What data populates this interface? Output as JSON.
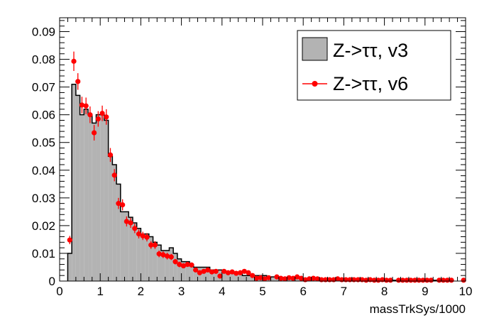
{
  "chart_data": {
    "type": "bar",
    "xlabel": "massTrkSys/1000",
    "xlim": [
      0,
      10
    ],
    "ylim": [
      0,
      0.095
    ],
    "x_ticks": [
      0,
      1,
      2,
      3,
      4,
      5,
      6,
      7,
      8,
      9,
      10
    ],
    "x_tick_labels": [
      "0",
      "1",
      "2",
      "3",
      "4",
      "5",
      "6",
      "7",
      "8",
      "9",
      "10"
    ],
    "y_ticks": [
      0,
      0.01,
      0.02,
      0.03,
      0.04,
      0.05,
      0.06,
      0.07,
      0.08,
      0.09
    ],
    "y_tick_labels": [
      "0",
      "0.01",
      "0.02",
      "0.03",
      "0.04",
      "0.05",
      "0.06",
      "0.07",
      "0.08",
      "0.09"
    ],
    "bin_width": 0.1,
    "colors": {
      "hist_fill": "#b3b3b3",
      "hist_line": "#000000",
      "points": "#ff0000"
    },
    "legend": {
      "position": "top-right",
      "entries": [
        {
          "label": "Z->ττ, v3",
          "style": "filled-box"
        },
        {
          "label": "Z->ττ, v6",
          "style": "marker-line"
        }
      ]
    },
    "series": [
      {
        "name": "Z->ττ, v3",
        "kind": "histogram",
        "x_edges_start": 0.2,
        "values": [
          0.01,
          0.071,
          0.067,
          0.06,
          0.062,
          0.06,
          0.057,
          0.06,
          0.06,
          0.058,
          0.045,
          0.042,
          0.035,
          0.025,
          0.025,
          0.023,
          0.021,
          0.019,
          0.017,
          0.017,
          0.016,
          0.014,
          0.013,
          0.011,
          0.011,
          0.012,
          0.01,
          0.008,
          0.007,
          0.007,
          0.006,
          0.005,
          0.005,
          0.005,
          0.005,
          0.004,
          0.004,
          0.004,
          0.003,
          0.003,
          0.003,
          0.003,
          0.003,
          0.002,
          0.002,
          0.002,
          0.002,
          0.002,
          0.002,
          0.0015,
          0.0015,
          0.0015,
          0.0013,
          0.0012,
          0.0011,
          0.001,
          0.001,
          0.001,
          0.001,
          0.001,
          0.0009,
          0.0009,
          0.0008,
          0.0008,
          0.0008,
          0.0007,
          0.0007,
          0.0007,
          0.0006,
          0.0006,
          0.0006,
          0.0005,
          0.0005,
          0.0005,
          0.0005,
          0.0004,
          0.0004,
          0.0004,
          0.0004,
          0.0004,
          0.0003,
          0.0003,
          0.0003,
          0.0003,
          0.0003,
          0.0003,
          0.0003,
          0.0003,
          0.0003,
          0.0003,
          0.0003,
          0.0003,
          0.0003,
          0.0003,
          0.0003
        ]
      },
      {
        "name": "Z->ττ, v6",
        "kind": "points-with-errors",
        "points": [
          [
            0.25,
            0.0148,
            0.0015
          ],
          [
            0.35,
            0.0793,
            0.0035
          ],
          [
            0.45,
            0.072,
            0.003
          ],
          [
            0.55,
            0.0635,
            0.003
          ],
          [
            0.65,
            0.0632,
            0.003
          ],
          [
            0.75,
            0.06,
            0.003
          ],
          [
            0.85,
            0.0535,
            0.0028
          ],
          [
            0.95,
            0.0585,
            0.0028
          ],
          [
            1.05,
            0.0605,
            0.0028
          ],
          [
            1.15,
            0.0592,
            0.0028
          ],
          [
            1.25,
            0.0455,
            0.0025
          ],
          [
            1.35,
            0.0382,
            0.0022
          ],
          [
            1.45,
            0.028,
            0.002
          ],
          [
            1.55,
            0.0275,
            0.002
          ],
          [
            1.65,
            0.0215,
            0.0018
          ],
          [
            1.75,
            0.021,
            0.0018
          ],
          [
            1.85,
            0.019,
            0.0017
          ],
          [
            1.95,
            0.017,
            0.0016
          ],
          [
            2.05,
            0.0163,
            0.0015
          ],
          [
            2.15,
            0.0158,
            0.0015
          ],
          [
            2.25,
            0.013,
            0.0014
          ],
          [
            2.35,
            0.013,
            0.0014
          ],
          [
            2.45,
            0.0098,
            0.0012
          ],
          [
            2.55,
            0.0095,
            0.0012
          ],
          [
            2.65,
            0.009,
            0.0012
          ],
          [
            2.75,
            0.0087,
            0.0011
          ],
          [
            2.85,
            0.007,
            0.001
          ],
          [
            2.95,
            0.006,
            0.001
          ],
          [
            3.05,
            0.0055,
            0.0009
          ],
          [
            3.15,
            0.006,
            0.0009
          ],
          [
            3.25,
            0.0058,
            0.0009
          ],
          [
            3.35,
            0.004,
            0.0008
          ],
          [
            3.45,
            0.003,
            0.0007
          ],
          [
            3.55,
            0.0035,
            0.0007
          ],
          [
            3.65,
            0.004,
            0.0007
          ],
          [
            3.75,
            0.0033,
            0.0007
          ],
          [
            3.85,
            0.0035,
            0.0007
          ],
          [
            3.95,
            0.0018,
            0.0006
          ],
          [
            4.05,
            0.0035,
            0.0007
          ],
          [
            4.15,
            0.003,
            0.0006
          ],
          [
            4.25,
            0.0033,
            0.0006
          ],
          [
            4.35,
            0.0028,
            0.0006
          ],
          [
            4.45,
            0.003,
            0.0006
          ],
          [
            4.55,
            0.0035,
            0.0006
          ],
          [
            4.65,
            0.003,
            0.0006
          ],
          [
            4.75,
            0.002,
            0.0005
          ],
          [
            4.85,
            0.001,
            0.0004
          ],
          [
            4.95,
            0.0012,
            0.0004
          ],
          [
            5.05,
            0.0008,
            0.0004
          ],
          [
            5.15,
            0.0012,
            0.0004
          ],
          [
            5.35,
            0.0015,
            0.0004
          ],
          [
            5.45,
            0.001,
            0.0004
          ],
          [
            5.55,
            0.0008,
            0.0003
          ],
          [
            5.65,
            0.0012,
            0.0004
          ],
          [
            5.75,
            0.001,
            0.0003
          ],
          [
            5.85,
            0.0015,
            0.0004
          ],
          [
            5.95,
            0.001,
            0.0003
          ],
          [
            6.05,
            0.0005,
            0.0003
          ],
          [
            6.15,
            0.0008,
            0.0003
          ],
          [
            6.25,
            0.001,
            0.0003
          ],
          [
            6.35,
            0.0008,
            0.0003
          ],
          [
            6.45,
            0.0005,
            0.0003
          ],
          [
            6.55,
            0.0005,
            0.0003
          ],
          [
            6.65,
            0.0005,
            0.0003
          ],
          [
            6.75,
            0.0005,
            0.0003
          ],
          [
            6.85,
            0.0008,
            0.0003
          ],
          [
            6.95,
            0.0005,
            0.0003
          ],
          [
            7.05,
            0.0005,
            0.0003
          ],
          [
            7.15,
            0.0005,
            0.0003
          ],
          [
            7.25,
            0.0005,
            0.0003
          ],
          [
            7.35,
            0.0005,
            0.0003
          ],
          [
            7.45,
            0.0005,
            0.0003
          ],
          [
            7.55,
            0.0003,
            0.0002
          ],
          [
            7.65,
            0.0005,
            0.0003
          ],
          [
            7.75,
            0.0003,
            0.0002
          ],
          [
            7.85,
            0.0003,
            0.0002
          ],
          [
            7.95,
            0.0005,
            0.0003
          ],
          [
            8.05,
            0.0003,
            0.0002
          ],
          [
            8.15,
            0.0003,
            0.0002
          ],
          [
            8.35,
            0.0003,
            0.0002
          ],
          [
            8.45,
            0.0003,
            0.0002
          ],
          [
            8.55,
            0.0003,
            0.0002
          ],
          [
            8.65,
            0.0003,
            0.0002
          ],
          [
            8.75,
            0.0003,
            0.0002
          ],
          [
            8.85,
            0.0003,
            0.0002
          ],
          [
            8.95,
            0.0003,
            0.0002
          ],
          [
            9.05,
            0.0003,
            0.0002
          ],
          [
            9.15,
            0.0003,
            0.0002
          ],
          [
            9.35,
            0.0003,
            0.0002
          ],
          [
            9.45,
            0.0003,
            0.0002
          ],
          [
            9.55,
            0.0003,
            0.0002
          ],
          [
            9.65,
            0.0003,
            0.0002
          ],
          [
            9.95,
            0.0003,
            0.0002
          ]
        ]
      }
    ]
  }
}
